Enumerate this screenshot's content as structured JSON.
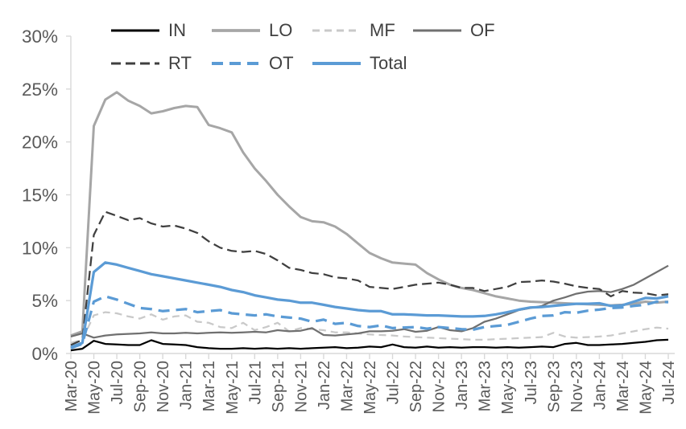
{
  "chart_data": {
    "type": "line",
    "title": "",
    "xlabel": "",
    "ylabel": "",
    "ylim": [
      0,
      30
    ],
    "grid": false,
    "legend_position": "top",
    "axis_color": "#d9d9d9",
    "tick_label_color": "#595959",
    "legend_text_color": "#404040",
    "y_ticks": [
      "0%",
      "5%",
      "10%",
      "15%",
      "20%",
      "25%",
      "30%"
    ],
    "y_tick_values": [
      0,
      5,
      10,
      15,
      20,
      25,
      30
    ],
    "x_tick_labels": [
      "Mar-20",
      "May-20",
      "Jul-20",
      "Sep-20",
      "Nov-20",
      "Jan-21",
      "Mar-21",
      "May-21",
      "Jul-21",
      "Sep-21",
      "Nov-21",
      "Jan-22",
      "Mar-22",
      "May-22",
      "Jul-22",
      "Sep-22",
      "Nov-22",
      "Jan-23",
      "Mar-23",
      "May-23",
      "Jul-23",
      "Sep-23",
      "Nov-23",
      "Jan-24",
      "Mar-24",
      "May-24",
      "Jul-24"
    ],
    "x": [
      "Mar-20",
      "Apr-20",
      "May-20",
      "Jun-20",
      "Jul-20",
      "Aug-20",
      "Sep-20",
      "Oct-20",
      "Nov-20",
      "Dec-20",
      "Jan-21",
      "Feb-21",
      "Mar-21",
      "Apr-21",
      "May-21",
      "Jun-21",
      "Jul-21",
      "Aug-21",
      "Sep-21",
      "Oct-21",
      "Nov-21",
      "Dec-21",
      "Jan-22",
      "Feb-22",
      "Mar-22",
      "Apr-22",
      "May-22",
      "Jun-22",
      "Jul-22",
      "Aug-22",
      "Sep-22",
      "Oct-22",
      "Nov-22",
      "Dec-22",
      "Jan-23",
      "Feb-23",
      "Mar-23",
      "Apr-23",
      "May-23",
      "Jun-23",
      "Jul-23",
      "Aug-23",
      "Sep-23",
      "Oct-23",
      "Nov-23",
      "Dec-23",
      "Jan-24",
      "Feb-24",
      "Mar-24",
      "Apr-24",
      "May-24",
      "Jun-24",
      "Jul-24"
    ],
    "series": [
      {
        "name": "IN",
        "color": "#000000",
        "dash": null,
        "width": 2.25,
        "values": [
          0.3,
          0.45,
          1.2,
          0.9,
          0.85,
          0.8,
          0.8,
          1.25,
          0.9,
          0.85,
          0.8,
          0.6,
          0.5,
          0.45,
          0.45,
          0.5,
          0.45,
          0.5,
          0.45,
          0.5,
          0.45,
          0.5,
          0.55,
          0.6,
          0.5,
          0.55,
          0.65,
          0.6,
          0.85,
          0.6,
          0.55,
          0.65,
          0.55,
          0.6,
          0.55,
          0.6,
          0.6,
          0.55,
          0.6,
          0.55,
          0.6,
          0.65,
          0.6,
          0.9,
          1.0,
          0.8,
          0.8,
          0.85,
          0.9,
          1.0,
          1.1,
          1.25,
          1.3
        ]
      },
      {
        "name": "LO",
        "color": "#a6a6a6",
        "dash": null,
        "width": 3,
        "values": [
          1.7,
          2.1,
          21.5,
          24.0,
          24.7,
          23.9,
          23.4,
          22.7,
          22.9,
          23.2,
          23.4,
          23.3,
          21.6,
          21.3,
          20.9,
          19.0,
          17.5,
          16.3,
          15.0,
          13.9,
          12.9,
          12.5,
          12.4,
          12.0,
          11.3,
          10.4,
          9.5,
          9.0,
          8.6,
          8.5,
          8.4,
          7.6,
          7.0,
          6.5,
          6.2,
          6.0,
          5.7,
          5.4,
          5.2,
          5.0,
          4.9,
          4.85,
          4.8,
          4.75,
          4.7,
          4.65,
          4.6,
          4.55,
          4.6,
          4.7,
          4.9,
          4.8,
          4.9
        ]
      },
      {
        "name": "MF",
        "color": "#c9c9c9",
        "dash": "9 6",
        "width": 2.25,
        "values": [
          1.0,
          1.3,
          3.6,
          3.9,
          3.8,
          3.5,
          3.3,
          3.7,
          3.2,
          3.5,
          3.6,
          3.0,
          2.9,
          2.5,
          2.4,
          2.9,
          2.2,
          2.5,
          2.9,
          2.1,
          2.4,
          2.3,
          2.2,
          2.0,
          2.0,
          1.9,
          1.8,
          1.75,
          1.7,
          1.6,
          1.55,
          1.5,
          1.45,
          1.4,
          1.35,
          1.3,
          1.3,
          1.35,
          1.4,
          1.45,
          1.5,
          1.55,
          1.95,
          1.6,
          1.5,
          1.55,
          1.6,
          1.7,
          1.9,
          2.1,
          2.3,
          2.45,
          2.35
        ]
      },
      {
        "name": "OF",
        "color": "#707070",
        "dash": null,
        "width": 2.25,
        "values": [
          1.6,
          1.9,
          1.5,
          1.7,
          1.8,
          1.85,
          1.9,
          2.0,
          1.9,
          1.9,
          1.95,
          1.9,
          1.95,
          2.0,
          1.95,
          2.0,
          2.05,
          2.0,
          2.2,
          2.1,
          2.15,
          2.4,
          1.75,
          1.7,
          1.8,
          1.9,
          2.1,
          2.1,
          2.15,
          2.3,
          2.05,
          2.15,
          2.5,
          2.2,
          2.1,
          2.4,
          3.0,
          3.3,
          3.7,
          4.1,
          4.3,
          4.5,
          5.0,
          5.3,
          5.65,
          5.85,
          5.9,
          5.8,
          6.1,
          6.5,
          7.1,
          7.7,
          8.3
        ]
      },
      {
        "name": "RT",
        "color": "#3f3f3f",
        "dash": "12 6",
        "width": 2.25,
        "values": [
          0.8,
          1.3,
          11.2,
          13.4,
          13.0,
          12.6,
          12.8,
          12.3,
          12.0,
          12.1,
          11.8,
          11.4,
          10.6,
          10.0,
          9.7,
          9.6,
          9.7,
          9.4,
          8.8,
          8.1,
          7.9,
          7.6,
          7.5,
          7.2,
          7.1,
          6.9,
          6.3,
          6.2,
          6.1,
          6.3,
          6.5,
          6.6,
          6.7,
          6.5,
          6.2,
          6.2,
          5.9,
          6.1,
          6.3,
          6.75,
          6.8,
          6.9,
          6.8,
          6.6,
          6.35,
          6.2,
          6.1,
          5.4,
          5.9,
          5.75,
          5.7,
          5.5,
          5.6
        ]
      },
      {
        "name": "OT",
        "color": "#5b9bd5",
        "dash": "14 8",
        "width": 3.25,
        "values": [
          0.5,
          0.9,
          4.9,
          5.4,
          5.1,
          4.7,
          4.3,
          4.2,
          4.0,
          4.1,
          4.2,
          3.9,
          4.0,
          4.1,
          3.8,
          3.7,
          3.6,
          3.7,
          3.5,
          3.4,
          3.3,
          3.0,
          3.2,
          2.8,
          2.9,
          2.6,
          2.5,
          2.65,
          2.4,
          2.45,
          2.5,
          2.35,
          2.5,
          2.4,
          2.3,
          2.25,
          2.5,
          2.6,
          2.7,
          3.0,
          3.3,
          3.55,
          3.6,
          3.9,
          3.85,
          4.05,
          4.15,
          4.3,
          4.35,
          4.5,
          4.6,
          4.9,
          4.85
        ]
      },
      {
        "name": "Total",
        "color": "#5b9bd5",
        "dash": null,
        "width": 3.25,
        "values": [
          0.6,
          1.0,
          7.7,
          8.6,
          8.4,
          8.1,
          7.8,
          7.5,
          7.3,
          7.1,
          6.9,
          6.7,
          6.5,
          6.3,
          6.0,
          5.8,
          5.5,
          5.3,
          5.1,
          5.0,
          4.8,
          4.8,
          4.6,
          4.4,
          4.25,
          4.1,
          4.0,
          4.0,
          3.7,
          3.7,
          3.65,
          3.6,
          3.6,
          3.55,
          3.5,
          3.5,
          3.55,
          3.7,
          3.9,
          4.15,
          4.35,
          4.4,
          4.5,
          4.6,
          4.7,
          4.7,
          4.75,
          4.5,
          4.55,
          4.9,
          5.25,
          5.2,
          5.4
        ]
      }
    ]
  }
}
